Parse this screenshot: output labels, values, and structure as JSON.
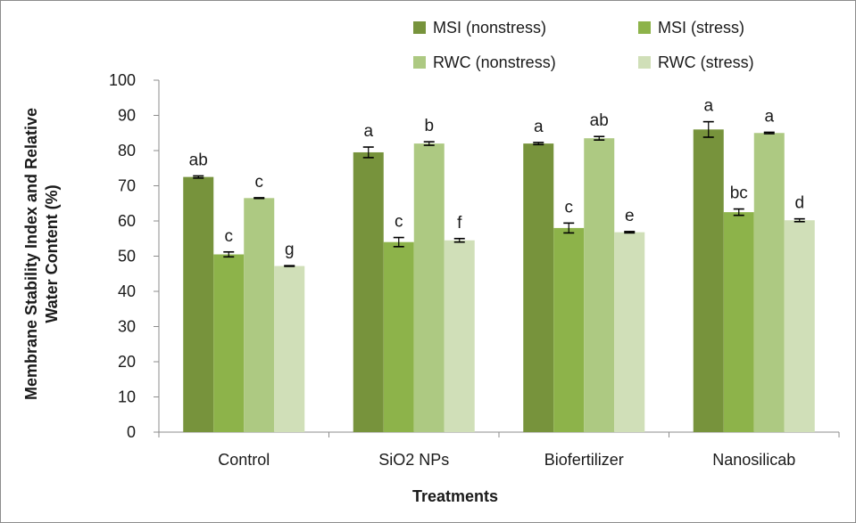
{
  "chart_data": {
    "type": "bar",
    "title": "",
    "xlabel": "Treatments",
    "ylabel_lines": [
      "Membrane Stability Index and Relative",
      "Water Content (%)"
    ],
    "categories": [
      "Control",
      "SiO2 NPs",
      "Biofertilizer",
      "Nanosilicab"
    ],
    "ylim": [
      0,
      100
    ],
    "yticks": [
      0,
      10,
      20,
      30,
      40,
      50,
      60,
      70,
      80,
      90,
      100
    ],
    "grid": false,
    "legend_position": "top-right",
    "series": [
      {
        "name": "MSI (nonstress)",
        "color": "#77933c",
        "values": [
          72.5,
          79.5,
          82,
          86
        ],
        "errors": [
          0.3,
          1.5,
          0.3,
          2.2
        ],
        "letters": [
          "ab",
          "a",
          "a",
          "a"
        ]
      },
      {
        "name": "MSI (stress)",
        "color": "#8db34a",
        "values": [
          50.5,
          54,
          58,
          62.5
        ],
        "errors": [
          0.7,
          1.3,
          1.4,
          0.9
        ],
        "letters": [
          "c",
          "c",
          "c",
          "bc"
        ]
      },
      {
        "name": "RWC (nonstress)",
        "color": "#adc982",
        "values": [
          66.5,
          82,
          83.5,
          85
        ],
        "errors": [
          0.1,
          0.5,
          0.5,
          0.2
        ],
        "letters": [
          "c",
          "b",
          "ab",
          "a"
        ]
      },
      {
        "name": "RWC (stress)",
        "color": "#d0dfb8",
        "values": [
          47.2,
          54.5,
          56.8,
          60.2
        ],
        "errors": [
          0.1,
          0.5,
          0.2,
          0.4
        ],
        "letters": [
          "g",
          "f",
          "e",
          "d"
        ]
      }
    ]
  }
}
